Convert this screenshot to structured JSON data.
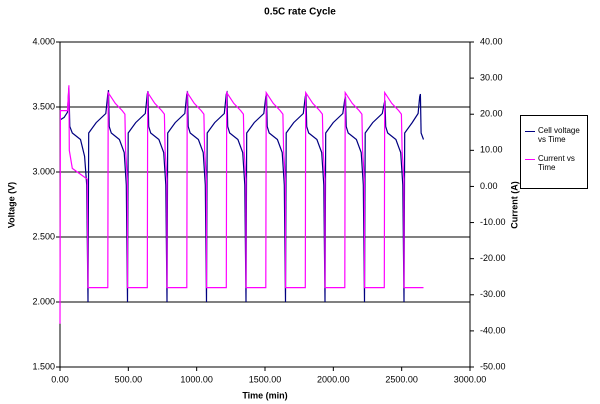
{
  "chart_data": {
    "type": "line",
    "title": "0.5C rate Cycle",
    "x_label": "Time (min)",
    "y_label": "Voltage (V)",
    "y2_label": "Current (A)",
    "xlim": [
      0,
      3000
    ],
    "xticks": [
      {
        "value": 0,
        "label": "0.00"
      },
      {
        "value": 500,
        "label": "500.00"
      },
      {
        "value": 1000,
        "label": "1000.00"
      },
      {
        "value": 1500,
        "label": "1500.00"
      },
      {
        "value": 2000,
        "label": "2000.00"
      },
      {
        "value": 2500,
        "label": "2500.00"
      },
      {
        "value": 3000,
        "label": "3000.00"
      }
    ],
    "ylim": [
      1.5,
      4.0
    ],
    "yticks": [
      {
        "value": 1.5,
        "label": "1.500"
      },
      {
        "value": 2.0,
        "label": "2.000"
      },
      {
        "value": 2.5,
        "label": "2.500"
      },
      {
        "value": 3.0,
        "label": "3.000"
      },
      {
        "value": 3.5,
        "label": "3.500"
      },
      {
        "value": 4.0,
        "label": "4.000"
      }
    ],
    "y2lim": [
      -50,
      40
    ],
    "y2ticks": [
      {
        "value": -50,
        "label": "-50.00"
      },
      {
        "value": -40,
        "label": "-40.00"
      },
      {
        "value": -30,
        "label": "-30.00"
      },
      {
        "value": -20,
        "label": "-20.00"
      },
      {
        "value": -10,
        "label": "-10.00"
      },
      {
        "value": 0,
        "label": "0.00"
      },
      {
        "value": 10,
        "label": "10.00"
      },
      {
        "value": 20,
        "label": "20.00"
      },
      {
        "value": 30,
        "label": "30.00"
      },
      {
        "value": 40,
        "label": "40.00"
      }
    ],
    "grid": true,
    "legend": "right",
    "series": [
      {
        "name": "Cell voltage vs Time",
        "color": "#000080",
        "x": [
          0,
          30,
          55,
          65,
          72,
          90,
          150,
          180,
          195,
          205,
          210,
          265,
          335,
          350,
          355,
          360,
          375,
          435,
          470,
          485,
          494,
          499,
          554,
          624,
          639,
          644,
          649,
          664,
          724,
          759,
          774,
          783,
          788,
          843,
          913,
          928,
          933,
          938,
          953,
          1013,
          1048,
          1063,
          1072,
          1077,
          1132,
          1202,
          1217,
          1222,
          1227,
          1242,
          1302,
          1337,
          1352,
          1361,
          1366,
          1421,
          1491,
          1506,
          1511,
          1516,
          1531,
          1591,
          1626,
          1641,
          1650,
          1655,
          1710,
          1780,
          1795,
          1800,
          1805,
          1820,
          1880,
          1915,
          1930,
          1939,
          1944,
          1999,
          2069,
          2084,
          2089,
          2094,
          2109,
          2169,
          2204,
          2219,
          2228,
          2233,
          2288,
          2358,
          2373,
          2378,
          2383,
          2398,
          2458,
          2493,
          2508,
          2517,
          2522,
          2577,
          2620,
          2632,
          2637,
          2642,
          2660
        ],
        "values": [
          3.4,
          3.42,
          3.46,
          3.65,
          3.35,
          3.3,
          3.25,
          3.12,
          2.9,
          2.0,
          3.3,
          3.38,
          3.45,
          3.6,
          3.63,
          3.35,
          3.3,
          3.25,
          3.15,
          2.9,
          2.0,
          3.3,
          3.38,
          3.45,
          3.6,
          3.62,
          3.35,
          3.3,
          3.25,
          3.15,
          2.9,
          2.0,
          3.3,
          3.38,
          3.45,
          3.6,
          3.61,
          3.35,
          3.3,
          3.25,
          3.15,
          2.9,
          2.0,
          3.3,
          3.38,
          3.45,
          3.6,
          3.61,
          3.35,
          3.3,
          3.25,
          3.15,
          2.9,
          2.0,
          3.3,
          3.38,
          3.45,
          3.58,
          3.6,
          3.35,
          3.3,
          3.25,
          3.15,
          2.9,
          2.0,
          3.3,
          3.38,
          3.45,
          3.58,
          3.6,
          3.35,
          3.3,
          3.25,
          3.15,
          2.9,
          2.0,
          3.3,
          3.38,
          3.45,
          3.56,
          3.58,
          3.35,
          3.3,
          3.25,
          3.15,
          2.9,
          2.0,
          3.3,
          3.38,
          3.45,
          3.53,
          3.55,
          3.35,
          3.3,
          3.25,
          3.15,
          2.9,
          2.0,
          3.3,
          3.38,
          3.45,
          3.58,
          3.6,
          3.3,
          3.25
        ]
      },
      {
        "name": "Current vs Time",
        "color": "#ff00ff",
        "axis": "y2",
        "x": [
          0,
          3,
          55,
          65,
          68,
          90,
          200,
          205,
          350,
          353,
          405,
          455,
          475,
          480,
          493,
          494,
          639,
          642,
          694,
          744,
          764,
          769,
          782,
          783,
          928,
          931,
          983,
          1033,
          1053,
          1058,
          1071,
          1072,
          1217,
          1220,
          1272,
          1322,
          1342,
          1347,
          1360,
          1361,
          1506,
          1509,
          1561,
          1611,
          1631,
          1636,
          1649,
          1650,
          1795,
          1798,
          1850,
          1900,
          1920,
          1925,
          1938,
          1939,
          2084,
          2087,
          2139,
          2189,
          2209,
          2214,
          2227,
          2228,
          2373,
          2376,
          2428,
          2478,
          2498,
          2503,
          2516,
          2517,
          2660
        ],
        "values": [
          -38,
          21,
          21,
          28,
          10,
          5,
          2,
          -28,
          -28,
          26,
          23,
          21,
          20,
          10,
          2,
          -28,
          -28,
          26,
          23,
          21,
          20,
          10,
          2,
          -28,
          -28,
          26,
          23,
          21,
          20,
          10,
          2,
          -28,
          -28,
          26,
          23,
          21,
          20,
          10,
          2,
          -28,
          -28,
          26,
          23,
          21,
          20,
          10,
          2,
          -28,
          -28,
          26,
          23,
          21,
          20,
          10,
          2,
          -28,
          -28,
          26,
          23,
          21,
          20,
          10,
          2,
          -28,
          -28,
          26,
          23,
          21,
          20,
          10,
          2,
          -28,
          -28
        ]
      }
    ]
  }
}
